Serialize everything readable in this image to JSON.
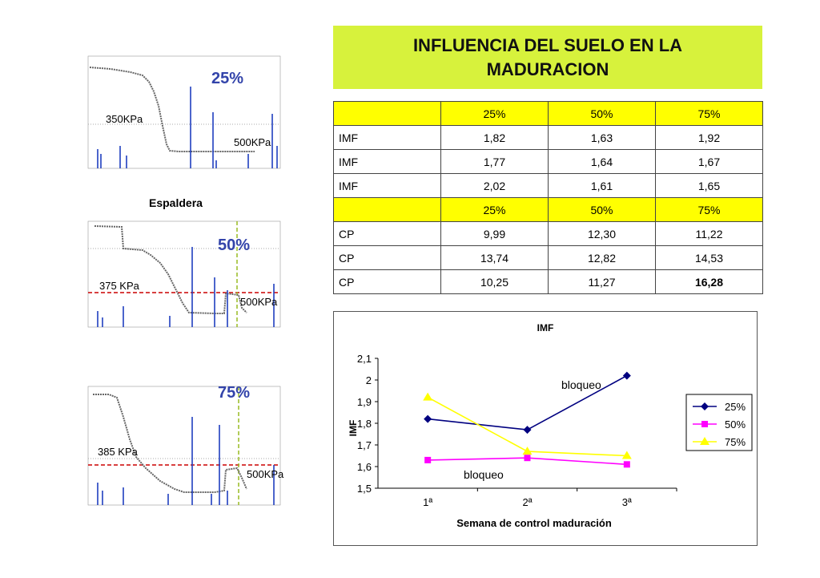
{
  "panels": [
    {
      "percent": "25%",
      "threshold_label": "350KPa",
      "end_label": "500KPa"
    },
    {
      "percent": "50%",
      "threshold_label": "375 KPa",
      "end_label": "500KPa",
      "caption": "Espaldera"
    },
    {
      "percent": "75%",
      "threshold_label": "385 KPa",
      "end_label": "500KPa"
    }
  ],
  "title": {
    "line1": "INFLUENCIA DEL SUELO EN LA",
    "line2": "MADURACION"
  },
  "table": {
    "rows": [
      {
        "label": "",
        "values": [
          "25%",
          "50%",
          "75%"
        ],
        "header": true
      },
      {
        "label": "IMF",
        "values": [
          "1,82",
          "1,63",
          "1,92"
        ]
      },
      {
        "label": "IMF",
        "values": [
          "1,77",
          "1,64",
          "1,67"
        ]
      },
      {
        "label": "IMF",
        "values": [
          "2,02",
          "1,61",
          "1,65"
        ]
      },
      {
        "label": "",
        "values": [
          "25%",
          "50%",
          "75%"
        ],
        "header": true
      },
      {
        "label": "CP",
        "values": [
          "9,99",
          "12,30",
          "11,22"
        ]
      },
      {
        "label": "CP",
        "values": [
          "13,74",
          "12,82",
          "14,53"
        ]
      },
      {
        "label": "CP",
        "values": [
          "10,25",
          "11,27",
          "16,28"
        ],
        "bold_last": true
      }
    ]
  },
  "chart_data": {
    "type": "line",
    "title": "IMF",
    "xlabel": "Semana de control maduración",
    "ylabel": "IMF",
    "categories": [
      "1ª",
      "2ª",
      "3ª"
    ],
    "ylim": [
      1.5,
      2.1
    ],
    "yticks": [
      "1,5",
      "1,6",
      "1,7",
      "1,8",
      "1,9",
      "2",
      "2,1"
    ],
    "legend_position": "right",
    "grid": false,
    "series": [
      {
        "name": "25%",
        "values": [
          1.82,
          1.77,
          2.02
        ],
        "color": "#000080",
        "marker": "diamond"
      },
      {
        "name": "50%",
        "values": [
          1.63,
          1.64,
          1.61
        ],
        "color": "#ff00ff",
        "marker": "square"
      },
      {
        "name": "75%",
        "values": [
          1.92,
          1.67,
          1.65
        ],
        "color": "#ffff00",
        "marker": "triangle"
      }
    ],
    "annotations": [
      {
        "text": "bloqueo",
        "near": "25% series at 3ª"
      },
      {
        "text": "bloqueo",
        "near": "50% series at 1ª-2ª"
      }
    ]
  }
}
